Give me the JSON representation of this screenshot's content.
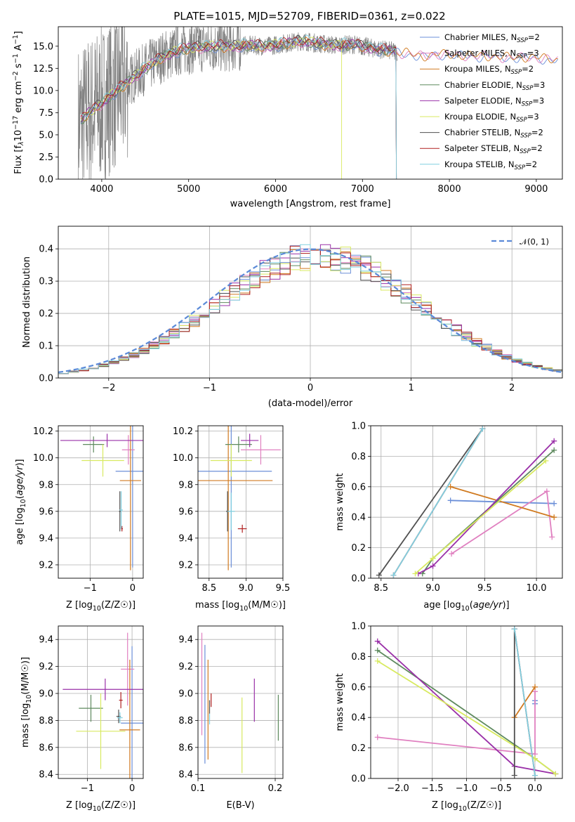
{
  "title": "PLATE=1015, MJD=52709, FIBERID=0361, z=0.022",
  "colors": {
    "Chabrier MILES": "#6b8fd8",
    "Salpeter MILES": "#e080c0",
    "Kroupa MILES": "#d07a20",
    "Chabrier ELODIE": "#5e8a5e",
    "Salpeter ELODIE": "#9a30a8",
    "Kroupa ELODIE": "#d8ea60",
    "Chabrier STELIB": "#505050",
    "Salpeter STELIB": "#b02020",
    "Kroupa STELIB": "#80d0e0",
    "data": "#808080",
    "normal": "#5b8ad8"
  },
  "chart_data": [
    {
      "type": "line",
      "title": "PLATE=1015, MJD=52709, FIBERID=0361, z=0.022",
      "xlabel": "wavelength [Angstrom, rest frame]",
      "ylabel_parts": [
        "Flux [f",
        "λ",
        "10",
        "−17",
        " erg cm",
        "−2",
        " s",
        "−1",
        " A",
        "−1",
        "]"
      ],
      "xlim": [
        3500,
        9300
      ],
      "ylim": [
        0,
        17.2
      ],
      "xticks": [
        4000,
        5000,
        6000,
        7000,
        8000,
        9000
      ],
      "xtick_labels": [
        "4000",
        "5000",
        "6000",
        "7000",
        "8000",
        "9000"
      ],
      "yticks": [
        0.0,
        2.5,
        5.0,
        7.5,
        10.0,
        12.5,
        15.0
      ],
      "ytick_labels": [
        "0.0",
        "2.5",
        "5.0",
        "7.5",
        "10.0",
        "12.5",
        "15.0"
      ],
      "continuum_x": [
        3750,
        3850,
        4000,
        4150,
        4300,
        4500,
        4700,
        4900,
        5100,
        5300,
        5500,
        5700,
        5900,
        6100,
        6300,
        6500,
        6700,
        6900,
        7100,
        7300,
        7500,
        7700,
        7900,
        8100,
        8300,
        8500,
        8700,
        8900,
        9100,
        9250
      ],
      "continuum_y": [
        6.5,
        7.5,
        8.6,
        9.8,
        11.0,
        12.5,
        13.8,
        14.6,
        14.9,
        15.0,
        15.0,
        15.1,
        15.0,
        15.3,
        15.6,
        15.3,
        15.1,
        15.2,
        14.8,
        14.5,
        14.3,
        14.0,
        14.2,
        14.1,
        14.0,
        14.0,
        13.8,
        13.9,
        13.7,
        13.6
      ],
      "data_end_x": 7400,
      "legend": {
        "location": "upper right",
        "entries": [
          {
            "model": "Chabrier MILES",
            "nssp": "=2"
          },
          {
            "model": "Salpeter MILES",
            "nssp": "=3"
          },
          {
            "model": "Kroupa MILES",
            "nssp": "=2"
          },
          {
            "model": "Chabrier ELODIE",
            "nssp": "=3"
          },
          {
            "model": "Salpeter ELODIE",
            "nssp": "=3"
          },
          {
            "model": "Kroupa ELODIE",
            "nssp": "=3"
          },
          {
            "model": "Chabrier STELIB",
            "nssp": "=2"
          },
          {
            "model": "Salpeter STELIB",
            "nssp": "=2"
          },
          {
            "model": "Kroupa STELIB",
            "nssp": "=2"
          }
        ]
      }
    },
    {
      "type": "histogram",
      "xlabel": "(data-model)/error",
      "ylabel": "Normed distribution",
      "xlim": [
        -2.5,
        2.5
      ],
      "ylim": [
        0,
        0.47
      ],
      "grid": true,
      "xticks": [
        -2,
        -1,
        0,
        1,
        2
      ],
      "xtick_labels": [
        "−2",
        "−1",
        "0",
        "1",
        "2"
      ],
      "yticks": [
        0.0,
        0.1,
        0.2,
        0.3,
        0.4
      ],
      "ytick_labels": [
        "0.0",
        "0.1",
        "0.2",
        "0.3",
        "0.4"
      ],
      "bin_edges_start": -2.5,
      "bin_width": 0.1,
      "bins": 50,
      "reference": {
        "label": "𝒩(0, 1)",
        "mean": 0,
        "sigma": 1,
        "location": "upper right"
      }
    },
    {
      "type": "scatter",
      "xlabel": "Z [log10(Z/Z☉)]",
      "ylabel": "age  [log10(age/yr)]",
      "xlim": [
        -1.75,
        0.25
      ],
      "ylim": [
        9.1,
        10.24
      ],
      "grid": true,
      "xticks": [
        -1,
        0
      ],
      "xtick_labels": [
        "−1",
        "0"
      ],
      "yticks": [
        9.2,
        9.4,
        9.6,
        9.8,
        10.0,
        10.2
      ],
      "ytick_labels": [
        "9.2",
        "9.4",
        "9.6",
        "9.8",
        "10.0",
        "10.2"
      ],
      "points": [
        {
          "model": "Chabrier MILES",
          "x": 0.0,
          "xerr": 0.4,
          "y": 9.9,
          "yerr": 0.72
        },
        {
          "model": "Salpeter MILES",
          "x": -0.1,
          "xerr": 0.15,
          "y": 10.06,
          "yerr": 0.11
        },
        {
          "model": "Kroupa MILES",
          "x": -0.05,
          "xerr": 0.25,
          "y": 9.83,
          "yerr": 0.67
        },
        {
          "model": "Chabrier ELODIE",
          "x": -0.92,
          "xerr": 0.25,
          "y": 10.1,
          "yerr": 0.06
        },
        {
          "model": "Salpeter ELODIE",
          "x": -0.6,
          "xerr": 1.1,
          "y": 10.13,
          "yerr": 0.05
        },
        {
          "model": "Kroupa ELODIE",
          "x": -0.7,
          "xerr": 0.5,
          "y": 9.98,
          "yerr": 0.12
        },
        {
          "model": "Chabrier STELIB",
          "x": -0.3,
          "xerr": 0.02,
          "y": 9.6,
          "yerr": 0.15
        },
        {
          "model": "Salpeter STELIB",
          "x": -0.25,
          "xerr": 0.02,
          "y": 9.47,
          "yerr": 0.02
        },
        {
          "model": "Kroupa STELIB",
          "x": -0.27,
          "xerr": 0.04,
          "y": 9.61,
          "yerr": 0.14
        }
      ]
    },
    {
      "type": "scatter",
      "xlabel": "mass [log10(M/M☉)]",
      "ylabel": "",
      "xlim": [
        8.35,
        9.5
      ],
      "ylim": [
        9.1,
        10.24
      ],
      "grid": true,
      "xticks": [
        8.5,
        9.0,
        9.5
      ],
      "xtick_labels": [
        "8.5",
        "9.0",
        "9.5"
      ],
      "yticks": [
        9.2,
        9.4,
        9.6,
        9.8,
        10.0,
        10.2
      ],
      "ytick_labels": [
        "9.2",
        "9.4",
        "9.6",
        "9.8",
        "10.0",
        "10.2"
      ],
      "points": [
        {
          "model": "Chabrier MILES",
          "x": 8.8,
          "xerr": 0.55,
          "y": 9.9,
          "yerr": 0.72
        },
        {
          "model": "Salpeter MILES",
          "x": 9.2,
          "xerr": 0.27,
          "y": 10.06,
          "yerr": 0.11
        },
        {
          "model": "Kroupa MILES",
          "x": 8.76,
          "xerr": 0.6,
          "y": 9.83,
          "yerr": 0.67
        },
        {
          "model": "Chabrier ELODIE",
          "x": 8.9,
          "xerr": 0.18,
          "y": 10.1,
          "yerr": 0.06
        },
        {
          "model": "Salpeter ELODIE",
          "x": 9.05,
          "xerr": 0.12,
          "y": 10.13,
          "yerr": 0.05
        },
        {
          "model": "Kroupa ELODIE",
          "x": 8.8,
          "xerr": 0.28,
          "y": 9.98,
          "yerr": 0.12
        },
        {
          "model": "Chabrier STELIB",
          "x": 8.75,
          "xerr": 0.02,
          "y": 9.6,
          "yerr": 0.15
        },
        {
          "model": "Salpeter STELIB",
          "x": 8.95,
          "xerr": 0.06,
          "y": 9.47,
          "yerr": 0.03
        },
        {
          "model": "Kroupa STELIB",
          "x": 8.8,
          "xerr": 0.05,
          "y": 9.6,
          "yerr": 0.14
        }
      ]
    },
    {
      "type": "line",
      "xlabel": "age  [log10(age/yr)]",
      "ylabel": "mass weight",
      "xlim": [
        8.4,
        10.25
      ],
      "ylim": [
        0,
        1.0
      ],
      "grid": true,
      "xticks": [
        8.5,
        9.0,
        9.5,
        10.0
      ],
      "xtick_labels": [
        "8.5",
        "9.0",
        "9.5",
        "10.0"
      ],
      "yticks": [
        0.0,
        0.2,
        0.4,
        0.6,
        0.8,
        1.0
      ],
      "ytick_labels": [
        "0.0",
        "0.2",
        "0.4",
        "0.6",
        "0.8",
        "1.0"
      ],
      "series": [
        {
          "model": "Chabrier MILES",
          "x": [
            9.17,
            10.17
          ],
          "y": [
            0.51,
            0.49
          ]
        },
        {
          "model": "Salpeter MILES",
          "x": [
            9.18,
            10.1,
            10.15
          ],
          "y": [
            0.16,
            0.57,
            0.27
          ]
        },
        {
          "model": "Kroupa MILES",
          "x": [
            9.17,
            10.17
          ],
          "y": [
            0.6,
            0.4
          ]
        },
        {
          "model": "Chabrier ELODIE",
          "x": [
            8.9,
            9.0,
            10.17
          ],
          "y": [
            0.03,
            0.13,
            0.84
          ]
        },
        {
          "model": "Salpeter ELODIE",
          "x": [
            8.86,
            9.0,
            10.17
          ],
          "y": [
            0.03,
            0.08,
            0.9
          ]
        },
        {
          "model": "Kroupa ELODIE",
          "x": [
            8.83,
            9.0,
            10.09
          ],
          "y": [
            0.03,
            0.13,
            0.77
          ]
        },
        {
          "model": "Chabrier STELIB",
          "x": [
            8.48,
            9.48
          ],
          "y": [
            0.02,
            0.98
          ]
        },
        {
          "model": "Salpeter STELIB",
          "x": [
            8.62,
            9.48
          ],
          "y": [
            0.02,
            0.98
          ]
        },
        {
          "model": "Kroupa STELIB",
          "x": [
            8.62,
            9.48
          ],
          "y": [
            0.02,
            0.98
          ]
        }
      ]
    },
    {
      "type": "scatter",
      "xlabel": "Z [log10(Z/Z☉)]",
      "ylabel": "mass [log10(M/M☉)]",
      "xlim": [
        -1.65,
        0.25
      ],
      "ylim": [
        8.37,
        9.5
      ],
      "grid": true,
      "xticks": [
        -1,
        0
      ],
      "xtick_labels": [
        "−1",
        "0"
      ],
      "yticks": [
        8.4,
        8.6,
        8.8,
        9.0,
        9.2,
        9.4
      ],
      "ytick_labels": [
        "8.4",
        "8.6",
        "8.8",
        "9.0",
        "9.2",
        "9.4"
      ],
      "points": [
        {
          "model": "Chabrier MILES",
          "x": 0.0,
          "xerr": 0.25,
          "y": 8.78,
          "yerr": 0.57
        },
        {
          "model": "Salpeter MILES",
          "x": -0.1,
          "xerr": 0.15,
          "y": 9.18,
          "yerr": 0.27
        },
        {
          "model": "Kroupa MILES",
          "x": -0.05,
          "xerr": 0.23,
          "y": 8.73,
          "yerr": 0.52
        },
        {
          "model": "Chabrier ELODIE",
          "x": -0.92,
          "xerr": 0.27,
          "y": 8.89,
          "yerr": 0.1
        },
        {
          "model": "Salpeter ELODIE",
          "x": -0.6,
          "xerr": 0.95,
          "y": 9.03,
          "yerr": 0.08
        },
        {
          "model": "Kroupa ELODIE",
          "x": -0.7,
          "xerr": 0.55,
          "y": 8.72,
          "yerr": 0.28
        },
        {
          "model": "Chabrier STELIB",
          "x": -0.3,
          "xerr": 0.05,
          "y": 8.83,
          "yerr": 0.05
        },
        {
          "model": "Salpeter STELIB",
          "x": -0.25,
          "xerr": 0.04,
          "y": 8.95,
          "yerr": 0.06
        },
        {
          "model": "Kroupa STELIB",
          "x": -0.27,
          "xerr": 0.06,
          "y": 8.82,
          "yerr": 0.04
        }
      ]
    },
    {
      "type": "scatter",
      "xlabel": "E(B-V)",
      "ylabel": "",
      "xlim": [
        0.1,
        0.21
      ],
      "ylim": [
        8.37,
        9.5
      ],
      "grid": true,
      "xticks": [
        0.1,
        0.2
      ],
      "xtick_labels": [
        "0.1",
        "0.2"
      ],
      "yticks": [
        8.4,
        8.6,
        8.8,
        9.0,
        9.2,
        9.4
      ],
      "ytick_labels": [
        "8.4",
        "8.6",
        "8.8",
        "9.0",
        "9.2",
        "9.4"
      ],
      "points": [
        {
          "model": "Chabrier MILES",
          "x": 0.109,
          "y": 8.92,
          "yerr": 0.44
        },
        {
          "model": "Salpeter MILES",
          "x": 0.105,
          "y": 9.07,
          "yerr": 0.38
        },
        {
          "model": "Kroupa MILES",
          "x": 0.113,
          "y": 8.88,
          "yerr": 0.37
        },
        {
          "model": "Chabrier ELODIE",
          "x": 0.204,
          "y": 8.82,
          "yerr": 0.17
        },
        {
          "model": "Salpeter ELODIE",
          "x": 0.173,
          "y": 8.95,
          "yerr": 0.16
        },
        {
          "model": "Kroupa ELODIE",
          "x": 0.157,
          "y": 8.69,
          "yerr": 0.28
        },
        {
          "model": "Chabrier STELIB",
          "x": 0.115,
          "y": 8.9,
          "yerr": 0.05
        },
        {
          "model": "Salpeter STELIB",
          "x": 0.117,
          "y": 8.95,
          "yerr": 0.05
        },
        {
          "model": "Kroupa STELIB",
          "x": 0.115,
          "y": 8.81,
          "yerr": 0.04
        }
      ]
    },
    {
      "type": "line",
      "xlabel": "Z [log10(Z/Z☉)]",
      "ylabel": "mass weight",
      "xlim": [
        -2.4,
        0.4
      ],
      "ylim": [
        0,
        1.0
      ],
      "grid": true,
      "xticks": [
        -2.0,
        -1.5,
        -1.0,
        -0.5,
        0.0
      ],
      "xtick_labels": [
        "−2.0",
        "−1.5",
        "−1.0",
        "−0.5",
        "0.0"
      ],
      "yticks": [
        0.0,
        0.2,
        0.4,
        0.6,
        0.8,
        1.0
      ],
      "ytick_labels": [
        "0.0",
        "0.2",
        "0.4",
        "0.6",
        "0.8",
        "1.0"
      ],
      "series": [
        {
          "model": "Chabrier MILES",
          "x": [
            0.0,
            0.0
          ],
          "y": [
            0.49,
            0.51
          ]
        },
        {
          "model": "Salpeter MILES",
          "x": [
            -2.3,
            0.0,
            0.0
          ],
          "y": [
            0.27,
            0.16,
            0.57
          ]
        },
        {
          "model": "Kroupa MILES",
          "x": [
            -0.3,
            0.0
          ],
          "y": [
            0.4,
            0.6
          ]
        },
        {
          "model": "Chabrier ELODIE",
          "x": [
            -2.3,
            0.0,
            0.3
          ],
          "y": [
            0.84,
            0.13,
            0.03
          ]
        },
        {
          "model": "Salpeter ELODIE",
          "x": [
            -2.3,
            -0.3,
            0.3
          ],
          "y": [
            0.9,
            0.08,
            0.03
          ]
        },
        {
          "model": "Kroupa ELODIE",
          "x": [
            -2.3,
            0.0,
            0.3
          ],
          "y": [
            0.77,
            0.13,
            0.03
          ]
        },
        {
          "model": "Chabrier STELIB",
          "x": [
            -0.3,
            -0.3
          ],
          "y": [
            0.02,
            0.98
          ]
        },
        {
          "model": "Salpeter STELIB",
          "x": [
            -0.3,
            0.0
          ],
          "y": [
            0.98,
            0.02
          ]
        },
        {
          "model": "Kroupa STELIB",
          "x": [
            -0.3,
            0.0
          ],
          "y": [
            0.98,
            0.02
          ]
        }
      ]
    }
  ]
}
